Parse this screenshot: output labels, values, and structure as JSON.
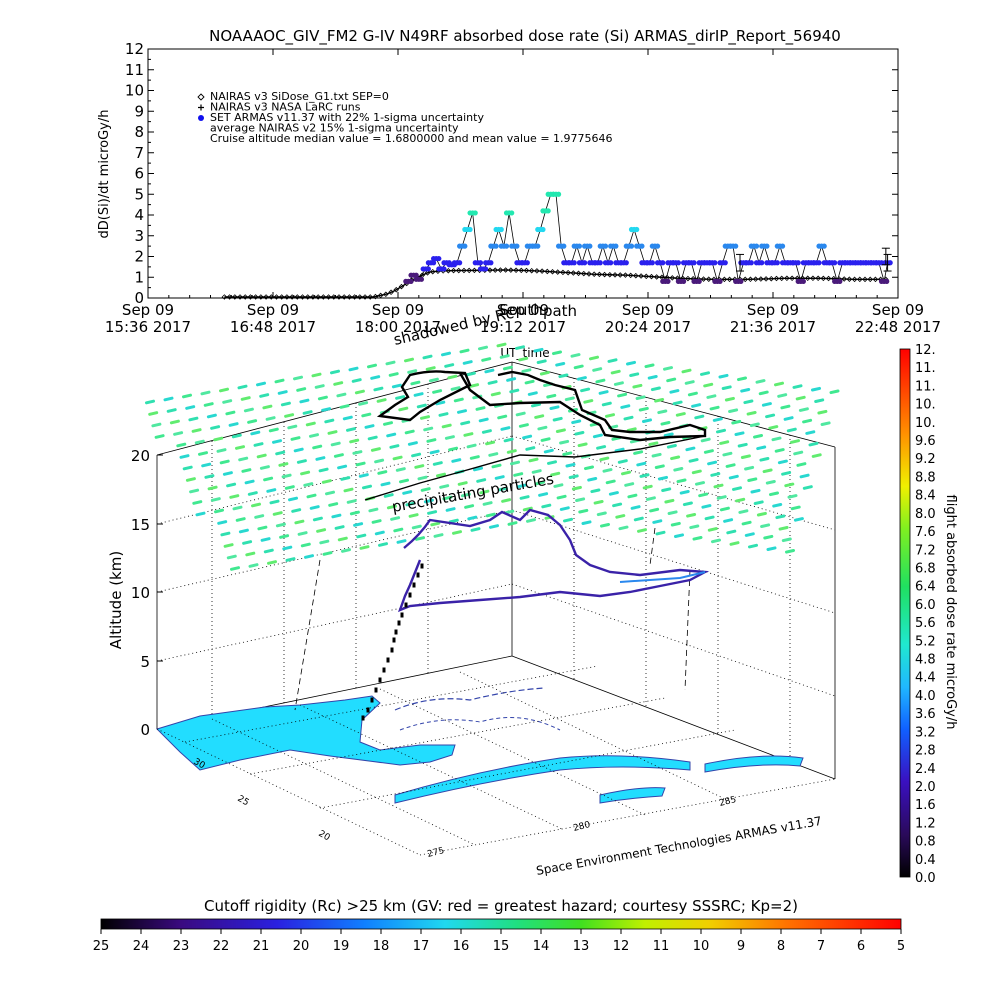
{
  "header": {
    "title": "NOAAAOC_GIV_FM2 G-IV    N49RF  absorbed dose rate (Si) ARMAS_dirIP_Report_56940"
  },
  "top_chart": {
    "ylabel": "dD(Si)/dt microGy/h",
    "xlabel": "UT_time",
    "legend": [
      {
        "symbol": "diamond",
        "text": "NAIRAS v3 SiDose_G1.txt SEP=0",
        "color": "#000000"
      },
      {
        "symbol": "plus",
        "text": "NAIRAS v3 NASA LaRC runs",
        "color": "#000000"
      },
      {
        "symbol": "dot",
        "text": "SET ARMAS v11.37 with 22% 1-sigma uncertainty",
        "color": "#1010ee"
      },
      {
        "symbol": "none",
        "text": "average NAIRAS v2 15% 1-sigma uncertainty",
        "color": "#000000"
      },
      {
        "symbol": "none",
        "text": "Cruise altitude median value = 1.6800000 and mean value = 1.9775646",
        "color": "#000000"
      }
    ],
    "overlay_labels": [
      "South",
      "path"
    ]
  },
  "chart_data": [
    {
      "type": "scatter",
      "title": "NOAAAOC_GIV_FM2 G-IV    N49RF  absorbed dose rate (Si) ARMAS_dirIP_Report_56940",
      "xlabel": "UT_time",
      "ylabel": "dD(Si)/dt microGy/h",
      "ylim": [
        0,
        12
      ],
      "yticks": [
        0,
        1,
        2,
        3,
        4,
        5,
        6,
        7,
        8,
        9,
        10,
        11,
        12
      ],
      "xlim_minutes": [
        0,
        432
      ],
      "xticks": [
        {
          "line1": "Sep 09",
          "line2": "15:36 2017",
          "min": 0
        },
        {
          "line1": "Sep 09",
          "line2": "16:48 2017",
          "min": 72
        },
        {
          "line1": "Sep 09",
          "line2": "18:00 2017",
          "min": 144
        },
        {
          "line1": "Sep 09",
          "line2": "19:12 2017",
          "min": 216
        },
        {
          "line1": "Sep 09",
          "line2": "20:24 2017",
          "min": 288
        },
        {
          "line1": "Sep 09",
          "line2": "21:36 2017",
          "min": 360
        },
        {
          "line1": "Sep 09",
          "line2": "22:48 2017",
          "min": 432
        }
      ],
      "series": [
        {
          "name": "NAIRAS v3 SiDose_G1.txt SEP=0",
          "marker": "diamond",
          "color": "#000000",
          "points": [
            [
              44,
              0.05
            ],
            [
              60,
              0.05
            ],
            [
              80,
              0.05
            ],
            [
              100,
              0.05
            ],
            [
              120,
              0.05
            ],
            [
              130,
              0.05
            ],
            [
              138,
              0.2
            ],
            [
              142,
              0.35
            ],
            [
              146,
              0.55
            ],
            [
              150,
              0.75
            ],
            [
              154,
              0.95
            ],
            [
              158,
              1.1
            ],
            [
              162,
              1.25
            ],
            [
              168,
              1.3
            ],
            [
              176,
              1.32
            ],
            [
              186,
              1.33
            ],
            [
              196,
              1.34
            ],
            [
              206,
              1.35
            ],
            [
              216,
              1.33
            ],
            [
              226,
              1.3
            ],
            [
              236,
              1.25
            ],
            [
              246,
              1.2
            ],
            [
              256,
              1.15
            ],
            [
              266,
              1.12
            ],
            [
              276,
              1.1
            ],
            [
              286,
              1.05
            ],
            [
              296,
              1.0
            ],
            [
              306,
              0.95
            ],
            [
              316,
              0.92
            ],
            [
              326,
              0.9
            ],
            [
              336,
              0.9
            ],
            [
              346,
              0.9
            ],
            [
              356,
              0.92
            ],
            [
              366,
              0.95
            ],
            [
              376,
              0.95
            ],
            [
              386,
              0.95
            ],
            [
              396,
              0.93
            ],
            [
              406,
              0.9
            ],
            [
              416,
              0.9
            ],
            [
              426,
              0.9
            ]
          ]
        },
        {
          "name": "SET ARMAS v11.37 with 22% 1-sigma uncertainty",
          "marker": "dot",
          "color": "#1010ee",
          "points": [
            [
              150,
              0.8
            ],
            [
              153,
              1.1
            ],
            [
              156,
              0.9
            ],
            [
              160,
              1.4
            ],
            [
              163,
              1.7
            ],
            [
              166,
              1.9
            ],
            [
              169,
              1.4
            ],
            [
              172,
              1.7
            ],
            [
              175,
              1.6
            ],
            [
              178,
              1.7
            ],
            [
              181,
              2.5
            ],
            [
              184,
              3.3
            ],
            [
              187,
              4.1
            ],
            [
              190,
              1.7
            ],
            [
              193,
              1.4
            ],
            [
              196,
              1.7
            ],
            [
              199,
              2.5
            ],
            [
              202,
              3.3
            ],
            [
              205,
              2.5
            ],
            [
              208,
              4.1
            ],
            [
              211,
              2.5
            ],
            [
              214,
              1.7
            ],
            [
              217,
              1.7
            ],
            [
              220,
              2.5
            ],
            [
              223,
              2.5
            ],
            [
              226,
              3.3
            ],
            [
              229,
              4.2
            ],
            [
              232,
              5.0
            ],
            [
              235,
              5.0
            ],
            [
              238,
              2.5
            ],
            [
              241,
              1.7
            ],
            [
              244,
              1.7
            ],
            [
              247,
              2.5
            ],
            [
              250,
              1.7
            ],
            [
              253,
              2.5
            ],
            [
              256,
              1.7
            ],
            [
              259,
              1.7
            ],
            [
              262,
              2.5
            ],
            [
              265,
              1.7
            ],
            [
              268,
              2.5
            ],
            [
              271,
              1.7
            ],
            [
              274,
              1.7
            ],
            [
              277,
              2.5
            ],
            [
              280,
              3.3
            ],
            [
              283,
              2.5
            ],
            [
              286,
              1.7
            ],
            [
              289,
              1.7
            ],
            [
              292,
              2.5
            ],
            [
              295,
              1.7
            ],
            [
              298,
              0.8
            ],
            [
              301,
              1.7
            ],
            [
              304,
              1.7
            ],
            [
              307,
              0.8
            ],
            [
              310,
              1.7
            ],
            [
              313,
              1.7
            ],
            [
              316,
              0.8
            ],
            [
              319,
              1.7
            ],
            [
              322,
              1.7
            ],
            [
              325,
              1.7
            ],
            [
              328,
              0.8
            ],
            [
              331,
              1.7
            ],
            [
              334,
              2.5
            ],
            [
              337,
              2.5
            ],
            [
              340,
              0.8
            ],
            [
              343,
              1.7
            ],
            [
              346,
              1.7
            ],
            [
              349,
              2.5
            ],
            [
              352,
              1.7
            ],
            [
              355,
              2.5
            ],
            [
              358,
              1.7
            ],
            [
              361,
              1.7
            ],
            [
              364,
              2.5
            ],
            [
              367,
              1.7
            ],
            [
              370,
              1.7
            ],
            [
              373,
              1.7
            ],
            [
              376,
              0.8
            ],
            [
              379,
              1.7
            ],
            [
              382,
              1.7
            ],
            [
              385,
              1.7
            ],
            [
              388,
              2.5
            ],
            [
              391,
              1.7
            ],
            [
              394,
              1.7
            ],
            [
              397,
              0.8
            ],
            [
              400,
              1.7
            ],
            [
              403,
              1.7
            ],
            [
              406,
              1.7
            ],
            [
              409,
              1.7
            ],
            [
              412,
              1.7
            ],
            [
              415,
              1.7
            ],
            [
              418,
              1.7
            ],
            [
              421,
              1.7
            ],
            [
              424,
              0.8
            ],
            [
              426,
              1.7
            ]
          ]
        }
      ],
      "errorbars": [
        [
          341,
          1.7,
          0.4
        ],
        [
          426,
          1.7,
          0.4
        ],
        [
          425,
          2.0,
          0.4
        ]
      ]
    },
    {
      "type": "3d-flight-track",
      "ylabel": "Altitude (km)",
      "zticks": [
        0,
        5,
        10,
        15,
        20
      ],
      "lat_ticks": [
        30,
        25,
        20
      ],
      "lon_ticks": [
        275,
        280,
        285
      ],
      "annotations": [
        "shadowed by Rc",
        "precipitating particles",
        "Space Environment Technologies ARMAS v11.37"
      ],
      "colorbar": {
        "title": "flight absorbed dose rate microGy/h",
        "min": 0.0,
        "max": 12.0,
        "labels": [
          "0.0",
          "0.4",
          "0.8",
          "1.2",
          "1.6",
          "2.0",
          "2.4",
          "2.8",
          "3.2",
          "3.6",
          "4.0",
          "4.4",
          "4.8",
          "5.2",
          "5.6",
          "6.0",
          "6.4",
          "6.8",
          "7.2",
          "7.6",
          "8.0",
          "8.4",
          "8.8",
          "9.2",
          "9.6",
          "10.",
          "10.",
          "11.",
          "11.",
          "12."
        ]
      },
      "rigidity_bar": {
        "title": "Cutoff rigidity (Rc) >25 km (GV: red = greatest hazard; courtesy SSSRC; Kp=2)",
        "labels": [
          "25",
          "24",
          "23",
          "22",
          "21",
          "20",
          "19",
          "18",
          "17",
          "16",
          "15",
          "14",
          "13",
          "12",
          "11",
          "10",
          "9",
          "8",
          "7",
          "6",
          "5"
        ]
      }
    }
  ],
  "colors": {
    "ocean_land_fill": "#22ddff",
    "coast_line": "#3344aa",
    "track_dark": "#000000",
    "grid_dot": "#000000"
  }
}
